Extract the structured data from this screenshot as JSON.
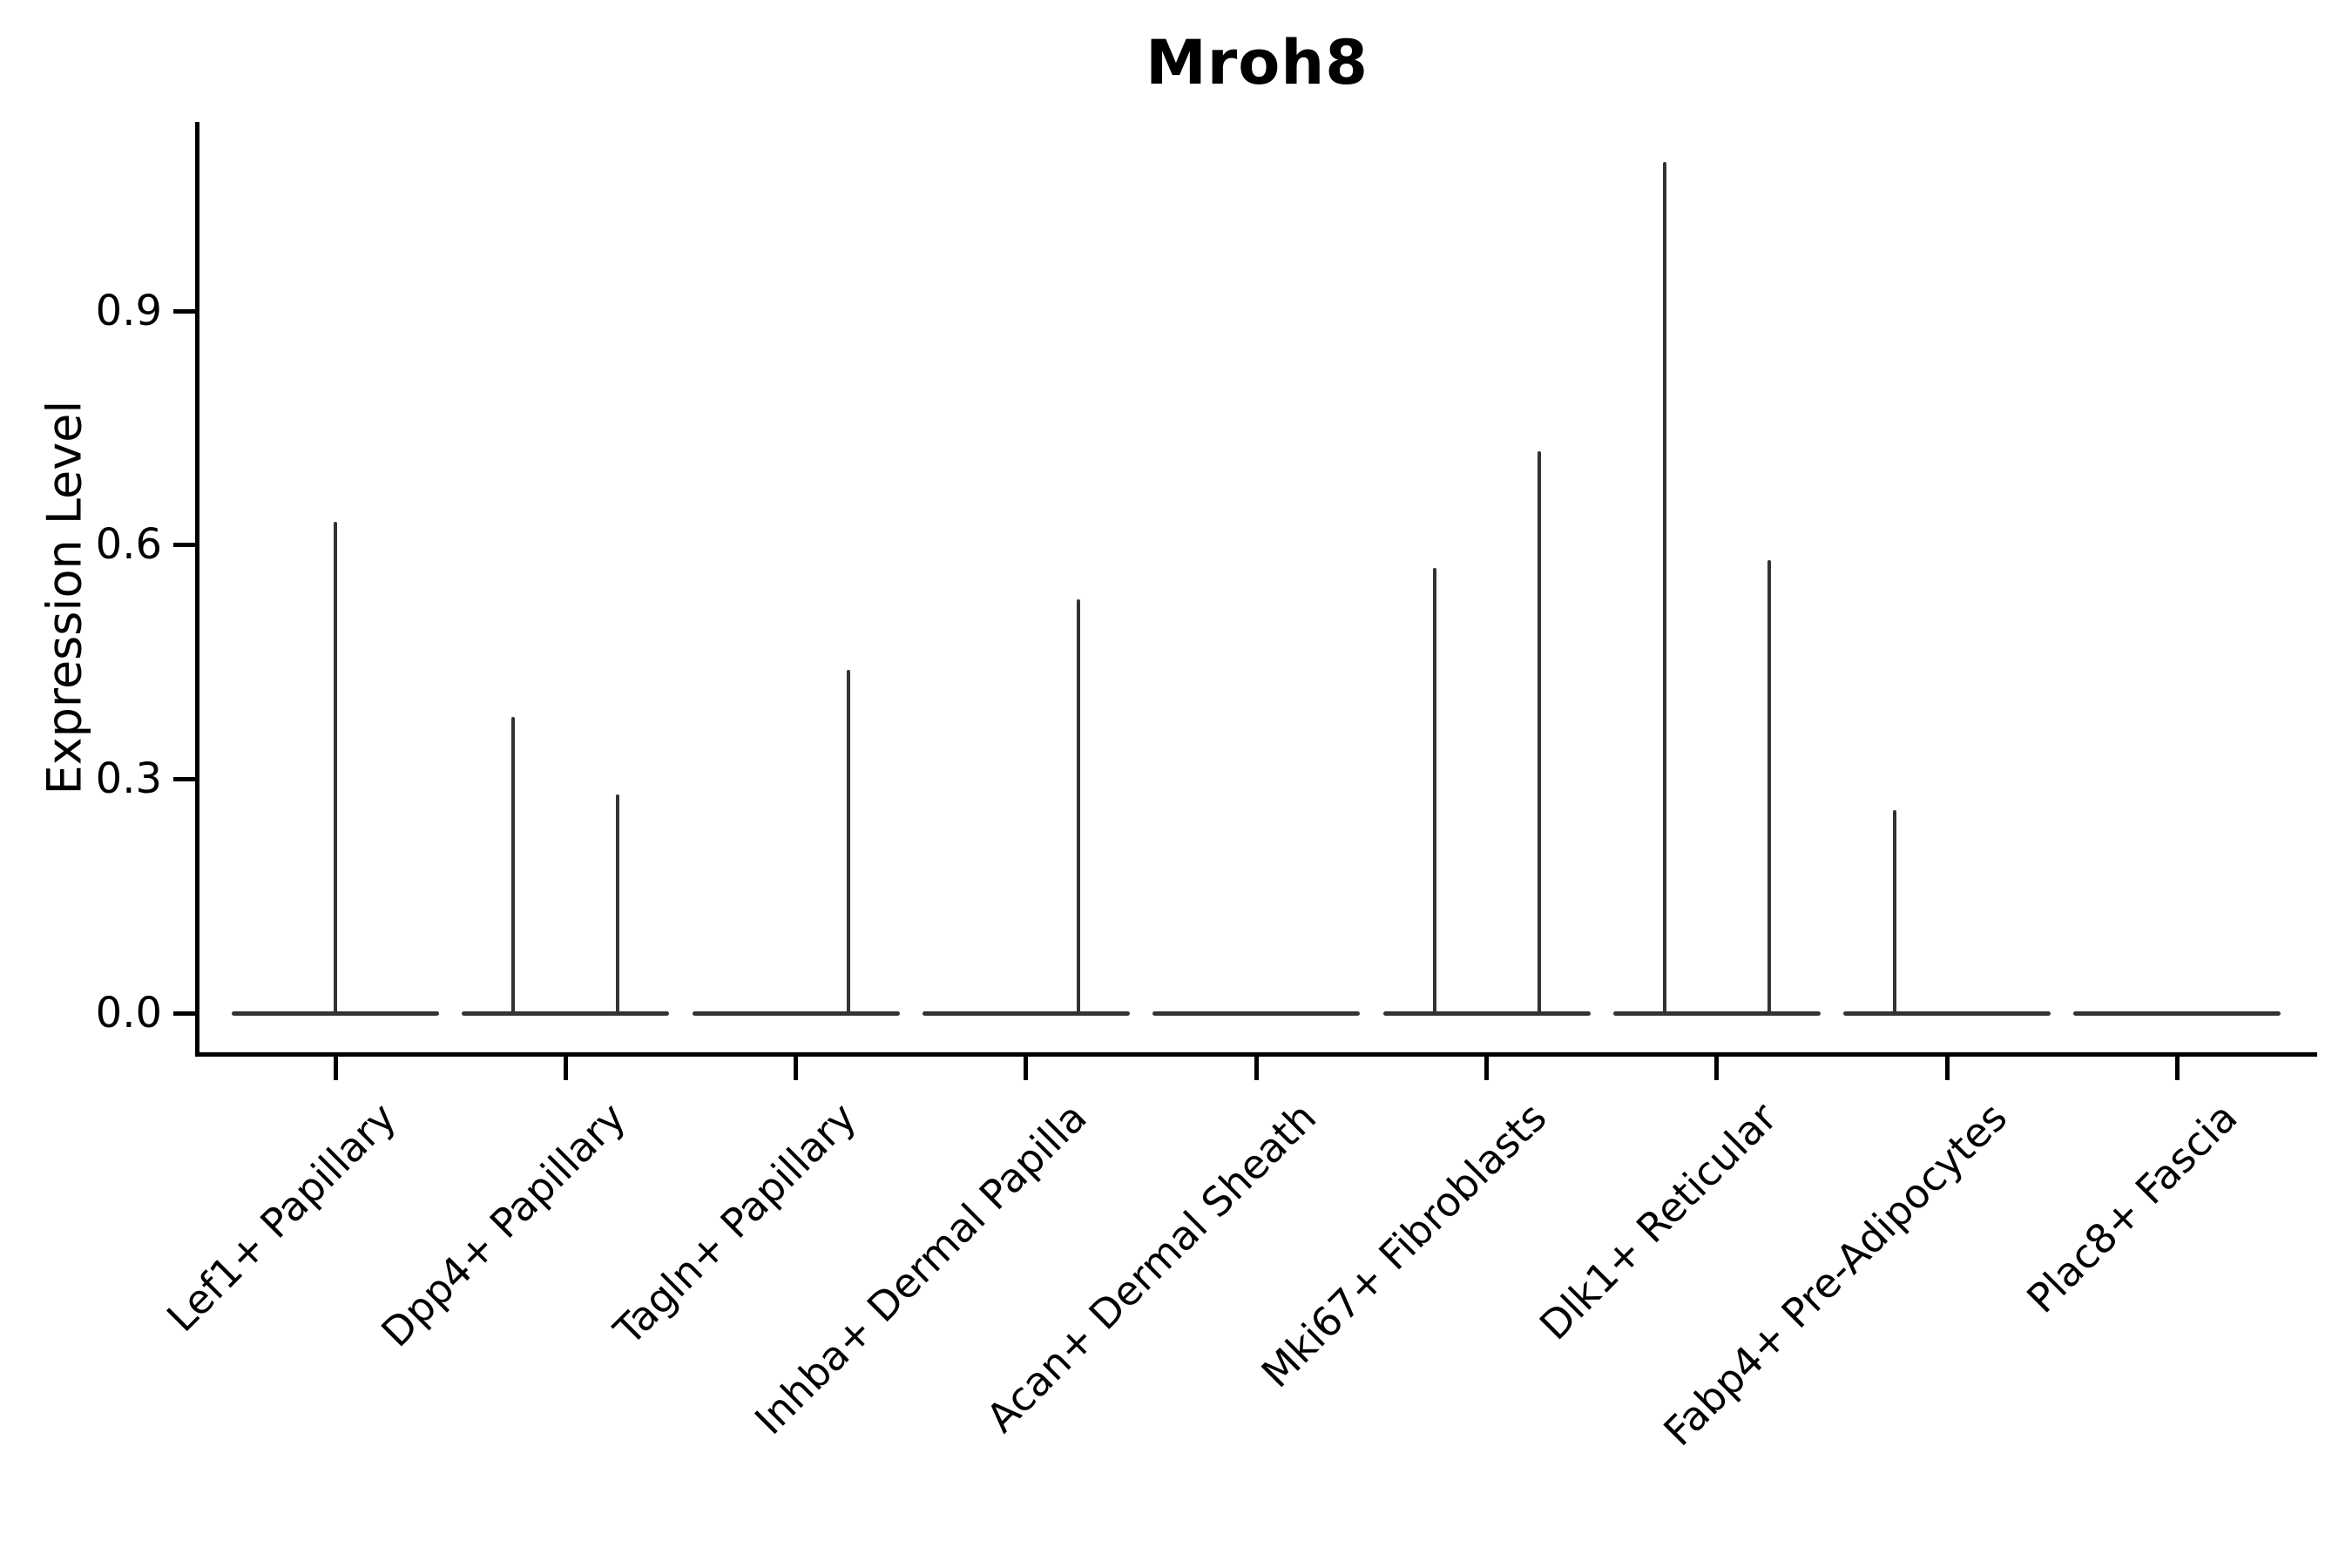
{
  "figure": {
    "title": "Mroh8",
    "ylabel": "Expression Level"
  },
  "chart_data": {
    "type": "violin",
    "title": "Mroh8",
    "xlabel": "",
    "ylabel": "Expression Level",
    "ylim": [
      -0.05,
      1.14
    ],
    "grid": false,
    "legend": null,
    "ytick_values": [
      0.0,
      0.3,
      0.6,
      0.9
    ],
    "ytick_labels": [
      "0.0",
      "0.3",
      "0.6",
      "0.9"
    ],
    "categories": [
      "Lef1+ Papillary",
      "Dpp4+ Papillary",
      "Tagln+ Papillary",
      "Inhba+ Dermal Papilla",
      "Acan+ Dermal Sheath",
      "Mki67+ Fibroblasts",
      "Dlk1+ Reticular",
      "Fabp4+ Pre-Adipocytes",
      "Plac8+ Fascia"
    ],
    "violins": [
      {
        "category": "Lef1+ Papillary",
        "zero_baseline": true,
        "spikes": [
          {
            "position": "center",
            "value": 0.63
          }
        ]
      },
      {
        "category": "Dpp4+ Papillary",
        "zero_baseline": true,
        "spikes": [
          {
            "position": "left",
            "value": 0.38
          },
          {
            "position": "right",
            "value": 0.28
          }
        ]
      },
      {
        "category": "Tagln+ Papillary",
        "zero_baseline": true,
        "spikes": [
          {
            "position": "right",
            "value": 0.44
          }
        ]
      },
      {
        "category": "Inhba+ Dermal Papilla",
        "zero_baseline": true,
        "spikes": [
          {
            "position": "right",
            "value": 0.53
          }
        ]
      },
      {
        "category": "Acan+ Dermal Sheath",
        "zero_baseline": true,
        "spikes": []
      },
      {
        "category": "Mki67+ Fibroblasts",
        "zero_baseline": true,
        "spikes": [
          {
            "position": "left",
            "value": 0.57
          },
          {
            "position": "right",
            "value": 0.72
          }
        ]
      },
      {
        "category": "Dlk1+ Reticular",
        "zero_baseline": true,
        "spikes": [
          {
            "position": "left",
            "value": 1.09
          },
          {
            "position": "right",
            "value": 0.58
          }
        ]
      },
      {
        "category": "Fabp4+ Pre-Adipocytes",
        "zero_baseline": true,
        "spikes": [
          {
            "position": "left",
            "value": 0.26
          }
        ]
      },
      {
        "category": "Plac8+ Fascia",
        "zero_baseline": true,
        "spikes": []
      }
    ],
    "colors": {
      "axis": "#000000",
      "violin_stroke": "#333333",
      "background": "#ffffff"
    }
  }
}
